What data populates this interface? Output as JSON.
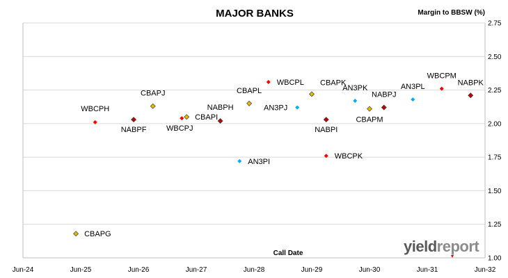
{
  "chart_data": {
    "type": "scatter",
    "title": "MAJOR BANKS",
    "ylabel": "Margin to BBSW (%)",
    "xlabel": "Call Date",
    "ylim": [
      1.0,
      2.75
    ],
    "y_ticks": [
      "1.00",
      "1.25",
      "1.50",
      "1.75",
      "2.00",
      "2.25",
      "2.50",
      "2.75"
    ],
    "y_tick_values": [
      1.0,
      1.25,
      1.5,
      1.75,
      2.0,
      2.25,
      2.5,
      2.75
    ],
    "xlim": [
      "2024-06",
      "2032-06"
    ],
    "x_ticks": [
      "Jun-24",
      "Jun-25",
      "Jun-26",
      "Jun-27",
      "Jun-28",
      "Jun-29",
      "Jun-30",
      "Jun-31",
      "Jun-32"
    ],
    "x_tick_values": [
      "2024-06",
      "2025-06",
      "2026-06",
      "2027-06",
      "2028-06",
      "2029-06",
      "2030-06",
      "2031-06",
      "2032-06"
    ],
    "grid": true,
    "legend": "none",
    "colors": {
      "CBA": "#e6b800",
      "WBC": "#ff0000",
      "NAB": "#c00000",
      "ANZ": "#00b0f0"
    },
    "points": [
      {
        "label": "CBAPG",
        "bank": "CBA",
        "x": "2025-05",
        "y": 1.18
      },
      {
        "label": "WBCPH",
        "bank": "WBC",
        "x": "2025-09",
        "y": 2.01
      },
      {
        "label": "NABPF",
        "bank": "NAB",
        "x": "2026-05",
        "y": 2.03
      },
      {
        "label": "CBAPJ",
        "bank": "CBA",
        "x": "2026-09",
        "y": 2.13
      },
      {
        "label": "WBCPJ",
        "bank": "WBC",
        "x": "2027-03",
        "y": 2.04
      },
      {
        "label": "CBAPI",
        "bank": "CBA",
        "x": "2027-04",
        "y": 2.05
      },
      {
        "label": "NABPH",
        "bank": "NAB",
        "x": "2027-11",
        "y": 2.02
      },
      {
        "label": "AN3PI",
        "bank": "ANZ",
        "x": "2028-03",
        "y": 1.72
      },
      {
        "label": "CBAPL",
        "bank": "CBA",
        "x": "2028-05",
        "y": 2.15
      },
      {
        "label": "WBCPL",
        "bank": "WBC",
        "x": "2028-09",
        "y": 2.31
      },
      {
        "label": "AN3PJ",
        "bank": "ANZ",
        "x": "2029-03",
        "y": 2.12
      },
      {
        "label": "CBAPK",
        "bank": "CBA",
        "x": "2029-06",
        "y": 2.22
      },
      {
        "label": "NABPI",
        "bank": "NAB",
        "x": "2029-09",
        "y": 2.03
      },
      {
        "label": "WBCPK",
        "bank": "WBC",
        "x": "2029-09",
        "y": 1.76
      },
      {
        "label": "AN3PK",
        "bank": "ANZ",
        "x": "2030-03",
        "y": 2.17
      },
      {
        "label": "CBAPM",
        "bank": "CBA",
        "x": "2030-06",
        "y": 2.11
      },
      {
        "label": "NABPJ",
        "bank": "NAB",
        "x": "2030-09",
        "y": 2.12
      },
      {
        "label": "AN3PL",
        "bank": "ANZ",
        "x": "2031-03",
        "y": 2.18
      },
      {
        "label": "WBCPM",
        "bank": "WBC",
        "x": "2031-09",
        "y": 2.26
      },
      {
        "label": "NABPK",
        "bank": "NAB",
        "x": "2032-03",
        "y": 2.21
      }
    ]
  },
  "logo": {
    "part1": "yield",
    "part2": "report"
  }
}
